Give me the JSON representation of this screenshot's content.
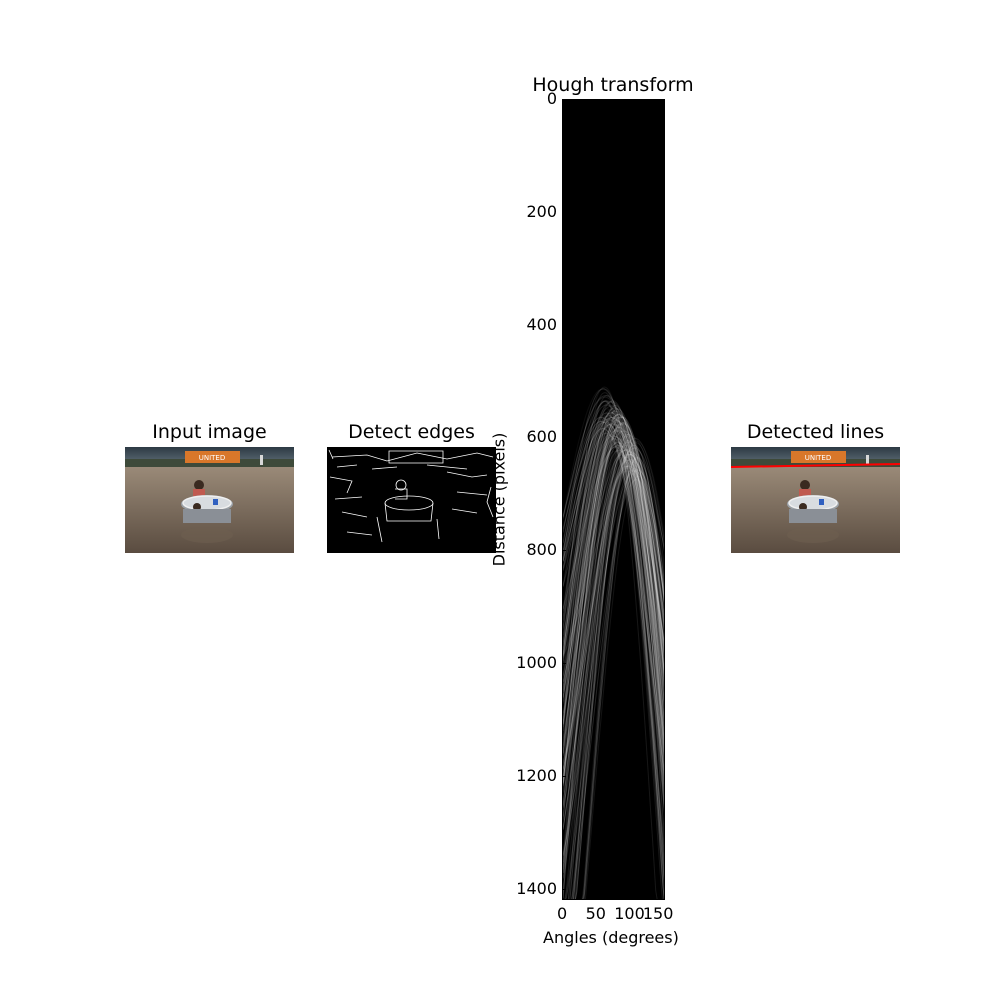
{
  "panels": {
    "input": {
      "title": "Input image"
    },
    "edges": {
      "title": "Detect edges"
    },
    "hough": {
      "title": "Hough transform"
    },
    "lines": {
      "title": "Detected lines"
    }
  },
  "scene": {
    "sign_text": "UNITED",
    "colors": {
      "sky": "#4a5a66",
      "sky_top": "#2d3a44",
      "water": "#8c7a68",
      "water_dark": "#6e5f50",
      "tub": "#c8ccd0",
      "sign": "#d9772a",
      "detected_line": "#ff0000"
    }
  },
  "chart_data": {
    "type": "heatmap",
    "title": "Hough transform",
    "xlabel": "Angles (degrees)",
    "ylabel": "Distance (pixels)",
    "xlim": [
      0,
      180
    ],
    "ylim": [
      1420,
      0
    ],
    "x_ticks": [
      0,
      50,
      100,
      150
    ],
    "y_ticks": [
      0,
      200,
      400,
      600,
      800,
      1000,
      1200,
      1400
    ],
    "colormap": "gray",
    "grid": false
  }
}
